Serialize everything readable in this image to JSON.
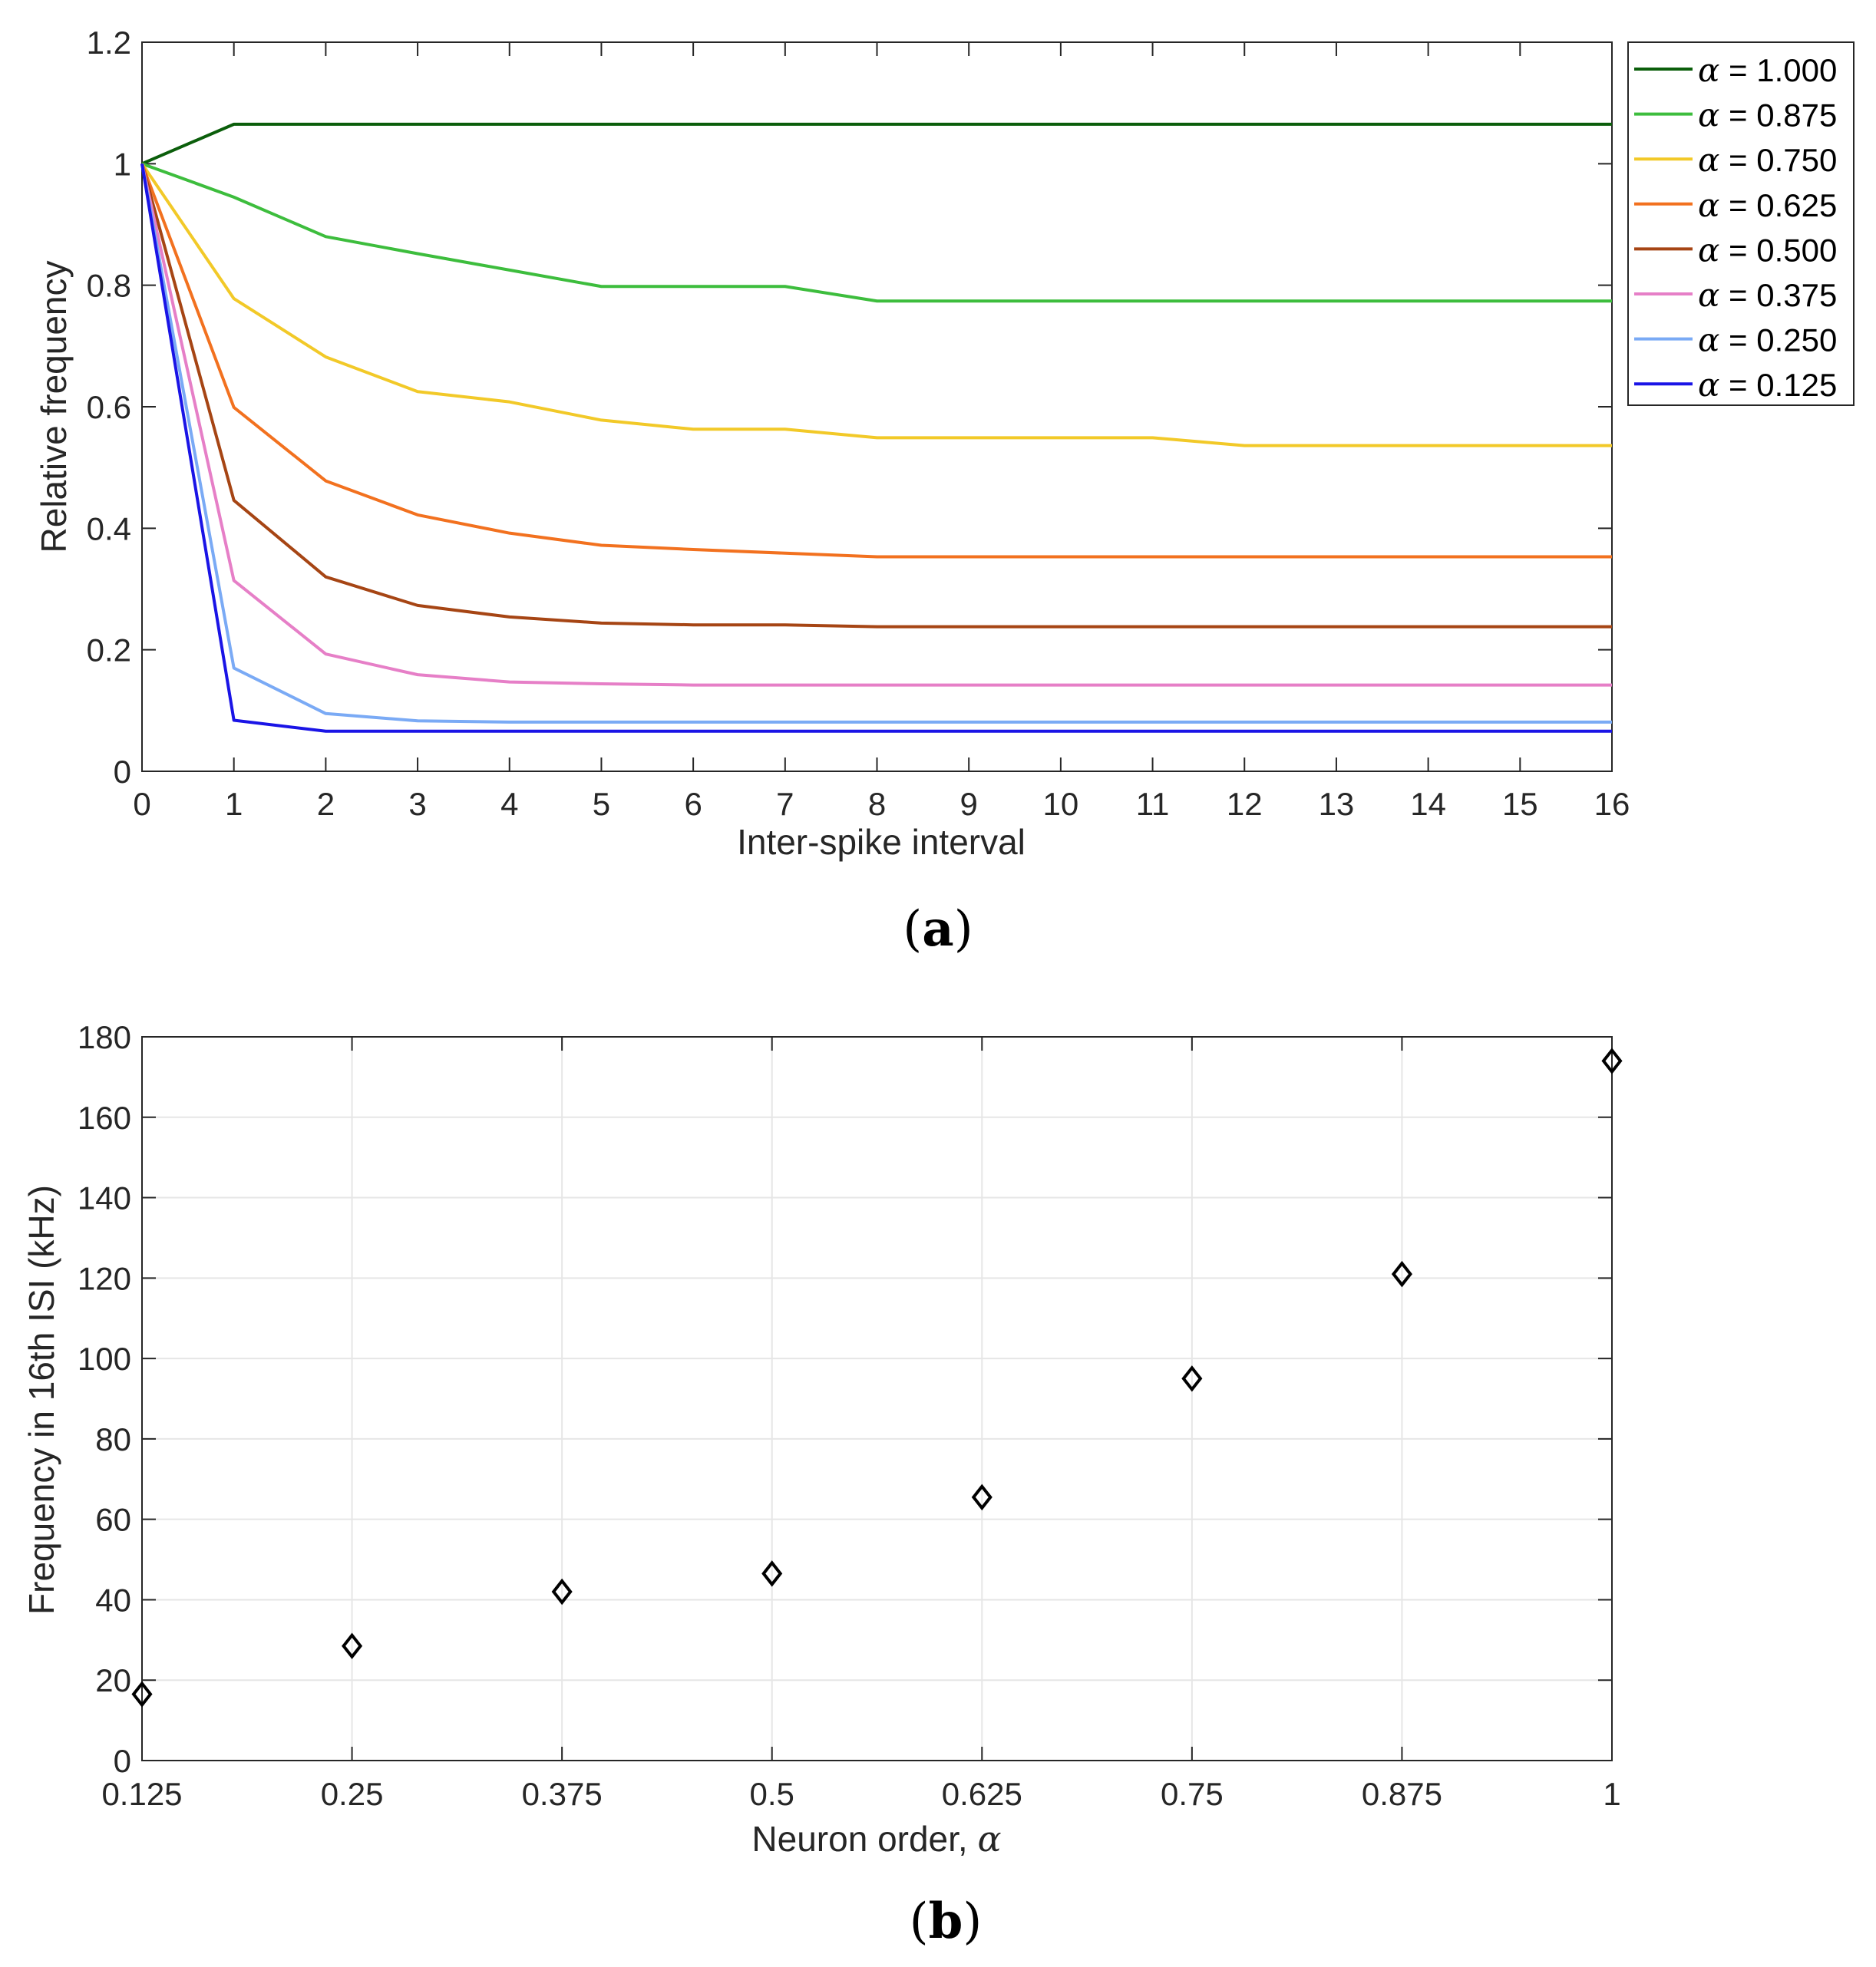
{
  "chart_data": [
    {
      "type": "line",
      "panel_label": "(a)",
      "panel_letter": "a",
      "xlabel": "Inter-spike interval",
      "ylabel": "Relative frequency",
      "xlim": [
        0,
        16
      ],
      "ylim": [
        0,
        1.2
      ],
      "x": [
        0,
        1,
        2,
        3,
        4,
        5,
        6,
        7,
        8,
        9,
        10,
        11,
        12,
        13,
        14,
        15,
        16
      ],
      "x_ticks": [
        "0",
        "1",
        "2",
        "3",
        "4",
        "5",
        "6",
        "7",
        "8",
        "9",
        "10",
        "11",
        "12",
        "13",
        "14",
        "15",
        "16"
      ],
      "y_ticks": [
        "0",
        "0.2",
        "0.4",
        "0.6",
        "0.8",
        "1",
        "1.2"
      ],
      "y_tick_values": [
        0,
        0.2,
        0.4,
        0.6,
        0.8,
        1,
        1.2
      ],
      "grid": false,
      "legend_position": "outside-top-right",
      "series": [
        {
          "name": "α = 1.000",
          "greek": "α",
          "label_rest": " = 1.000",
          "color": "#0b5e0b",
          "values": [
            1,
            1.065,
            1.065,
            1.065,
            1.065,
            1.065,
            1.065,
            1.065,
            1.065,
            1.065,
            1.065,
            1.065,
            1.065,
            1.065,
            1.065,
            1.065,
            1.065
          ]
        },
        {
          "name": "α = 0.875",
          "greek": "α",
          "label_rest": " = 0.875",
          "color": "#3dbd3d",
          "values": [
            1,
            0.945,
            0.88,
            0.852,
            0.825,
            0.798,
            0.798,
            0.798,
            0.774,
            0.774,
            0.774,
            0.774,
            0.774,
            0.774,
            0.774,
            0.774,
            0.774
          ]
        },
        {
          "name": "α = 0.750",
          "greek": "α",
          "label_rest": " = 0.750",
          "color": "#f2c928",
          "values": [
            1,
            0.778,
            0.682,
            0.625,
            0.608,
            0.578,
            0.563,
            0.563,
            0.549,
            0.549,
            0.549,
            0.549,
            0.536,
            0.536,
            0.536,
            0.536,
            0.536
          ]
        },
        {
          "name": "α = 0.625",
          "greek": "α",
          "label_rest": " = 0.625",
          "color": "#f2711f",
          "values": [
            1,
            0.599,
            0.478,
            0.422,
            0.392,
            0.372,
            0.365,
            0.359,
            0.353,
            0.353,
            0.353,
            0.353,
            0.353,
            0.353,
            0.353,
            0.353,
            0.353
          ]
        },
        {
          "name": "α = 0.500",
          "greek": "α",
          "label_rest": " = 0.500",
          "color": "#a64514",
          "values": [
            1,
            0.446,
            0.32,
            0.273,
            0.254,
            0.244,
            0.241,
            0.241,
            0.238,
            0.238,
            0.238,
            0.238,
            0.238,
            0.238,
            0.238,
            0.238,
            0.238
          ]
        },
        {
          "name": "α = 0.375",
          "greek": "α",
          "label_rest": " = 0.375",
          "color": "#e67fc7",
          "values": [
            1,
            0.314,
            0.193,
            0.159,
            0.147,
            0.144,
            0.142,
            0.142,
            0.142,
            0.142,
            0.142,
            0.142,
            0.142,
            0.142,
            0.142,
            0.142,
            0.142
          ]
        },
        {
          "name": "α = 0.250",
          "greek": "α",
          "label_rest": " = 0.250",
          "color": "#7aaaf5",
          "values": [
            1,
            0.17,
            0.095,
            0.083,
            0.081,
            0.081,
            0.081,
            0.081,
            0.081,
            0.081,
            0.081,
            0.081,
            0.081,
            0.081,
            0.081,
            0.081,
            0.081
          ]
        },
        {
          "name": "α = 0.125",
          "greek": "α",
          "label_rest": " = 0.125",
          "color": "#1a14e6",
          "values": [
            1,
            0.084,
            0.066,
            0.066,
            0.066,
            0.066,
            0.066,
            0.066,
            0.066,
            0.066,
            0.066,
            0.066,
            0.066,
            0.066,
            0.066,
            0.066,
            0.066
          ]
        }
      ]
    },
    {
      "type": "scatter",
      "panel_label": "(b)",
      "panel_letter": "b",
      "xlabel": "Neuron order, α",
      "xlabel_text": "Neuron order, ",
      "xlabel_greek": "α",
      "ylabel": "Frequency in 16th ISI (kHz)",
      "xlim": [
        0.125,
        1
      ],
      "ylim": [
        0,
        180
      ],
      "x_tick_values": [
        0.125,
        0.25,
        0.375,
        0.5,
        0.625,
        0.75,
        0.875,
        1
      ],
      "x_ticks": [
        "0.125",
        "0.25",
        "0.375",
        "0.5",
        "0.625",
        "0.75",
        "0.875",
        "1"
      ],
      "y_tick_values": [
        0,
        20,
        40,
        60,
        80,
        100,
        120,
        140,
        160,
        180
      ],
      "y_ticks": [
        "0",
        "20",
        "40",
        "60",
        "80",
        "100",
        "120",
        "140",
        "160",
        "180"
      ],
      "grid": true,
      "marker": "diamond",
      "marker_color": "#000000",
      "x": [
        0.125,
        0.25,
        0.375,
        0.5,
        0.625,
        0.75,
        0.875,
        1
      ],
      "values": [
        16.5,
        28.5,
        42,
        46.5,
        65.5,
        95,
        121,
        174
      ]
    }
  ]
}
